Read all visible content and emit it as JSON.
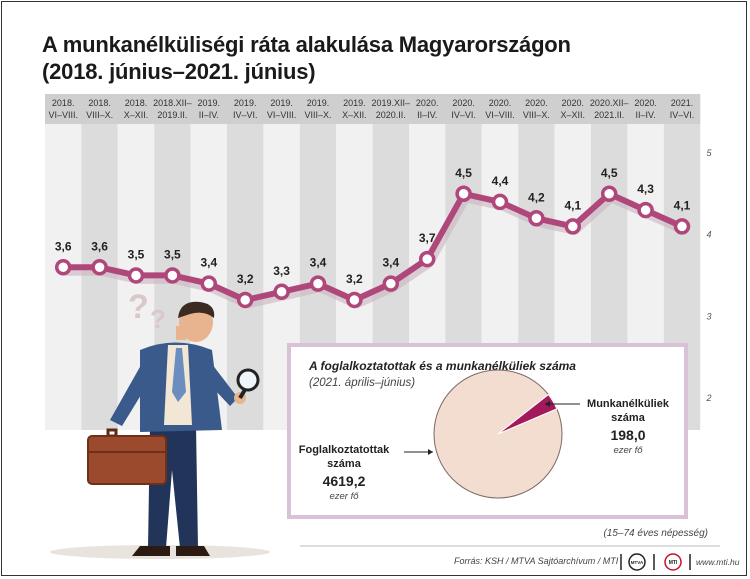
{
  "header": {
    "title_line1": "A munkanélküliségi ráta alakulása Magyarországon",
    "title_line2": "(2018. június–2021. június)"
  },
  "colors": {
    "line": "#b0477b",
    "marker_fill": "#ffffff",
    "band_dark": "#dcdcdc",
    "band_light": "#f1f1f1",
    "header_bg": "#cfcfcf",
    "pie_main": "#f3ddd0",
    "pie_slice": "#a3185a",
    "inset_border": "#d9c2d7"
  },
  "chart_data": [
    {
      "type": "line",
      "title": "A munkanélküliségi ráta alakulása Magyarországon",
      "subtitle": "(2018. június–2021. június)",
      "categories": [
        [
          "2018.",
          "VI–VIII."
        ],
        [
          "2018.",
          "VIII–X."
        ],
        [
          "2018.",
          "X–XII."
        ],
        [
          "2018.XII–",
          "2019.II."
        ],
        [
          "2019.",
          "II–IV."
        ],
        [
          "2019.",
          "IV–VI."
        ],
        [
          "2019.",
          "VI–VIII."
        ],
        [
          "2019.",
          "VIII–X."
        ],
        [
          "2019.",
          "X–XII."
        ],
        [
          "2019.XII–",
          "2020.II."
        ],
        [
          "2020.",
          "II–IV."
        ],
        [
          "2020.",
          "IV–VI."
        ],
        [
          "2020.",
          "VI–VIII."
        ],
        [
          "2020.",
          "VIII–X."
        ],
        [
          "2020.",
          "X–XII."
        ],
        [
          "2020.XII–",
          "2021.II."
        ],
        [
          "2020.",
          "II–IV."
        ],
        [
          "2021.",
          "IV–VI."
        ]
      ],
      "values": [
        3.6,
        3.6,
        3.5,
        3.5,
        3.4,
        3.2,
        3.3,
        3.4,
        3.2,
        3.4,
        3.7,
        4.5,
        4.4,
        4.2,
        4.1,
        4.5,
        4.3,
        4.1
      ],
      "value_labels": [
        "3,6",
        "3,6",
        "3,5",
        "3,5",
        "3,4",
        "3,2",
        "3,3",
        "3,4",
        "3,2",
        "3,4",
        "3,7",
        "4,5",
        "4,4",
        "4,2",
        "4,1",
        "4,5",
        "4,3",
        "4,1"
      ],
      "y_ticks": [
        "5",
        "4",
        "3",
        "2"
      ],
      "ylim": [
        2,
        5
      ],
      "grid": false
    },
    {
      "type": "pie",
      "title": "A foglalkoztatottak és a munkanélküliek száma",
      "subtitle": "(2021. április–június)",
      "slices": [
        {
          "label": "Foglalkoztatottak száma",
          "value": 4619.2,
          "value_text": "4619,2",
          "unit": "ezer fő"
        },
        {
          "label": "Munkanélküliek száma",
          "value": 198.0,
          "value_text": "198,0",
          "unit": "ezer fő"
        }
      ]
    }
  ],
  "inset": {
    "title": "A foglalkoztatottak és a munkanélküliek száma",
    "subtitle": "(2021. április–június)",
    "employed_label_1": "Foglalkoztatottak",
    "employed_label_2": "száma",
    "employed_value": "4619,2",
    "employed_unit": "ezer fő",
    "unemployed_label_1": "Munkanélküliek",
    "unemployed_label_2": "száma",
    "unemployed_value": "198,0",
    "unemployed_unit": "ezer fő"
  },
  "footer": {
    "population_note": "(15–74 éves népesség)",
    "source": "Forrás: KSH / MTVA Sajtóarchívum / MTI",
    "logo1": "MTVA",
    "logo2": "MTI",
    "site": "www.mti.hu"
  }
}
